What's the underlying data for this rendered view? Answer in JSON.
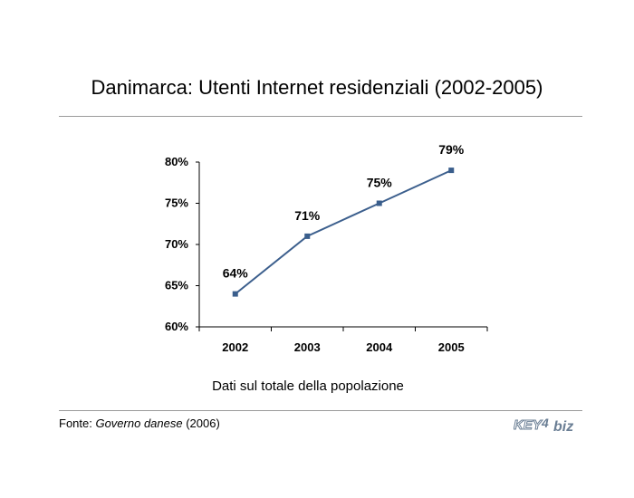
{
  "title": "Danimarca: Utenti Internet residenziali (2002-2005)",
  "chart_data": {
    "type": "line",
    "x": [
      "2002",
      "2003",
      "2004",
      "2005"
    ],
    "series": [
      {
        "values": [
          64,
          71,
          75,
          79
        ],
        "labels": [
          "64%",
          "71%",
          "75%",
          "79%"
        ]
      }
    ],
    "ylim": [
      60,
      80
    ],
    "yticks": [
      "60%",
      "65%",
      "70%",
      "75%",
      "80%"
    ],
    "grid": false,
    "line_color": "#3c5f8d",
    "marker_color": "#3a5e8c"
  },
  "caption": "Dati sul totale della popolazione",
  "source": {
    "prefix": "Fonte: ",
    "name": "Governo danese",
    "suffix": " (2006)"
  },
  "logo": {
    "left": "KEY",
    "mid": "4",
    "right": "biz",
    "color": "#6b7f95"
  }
}
